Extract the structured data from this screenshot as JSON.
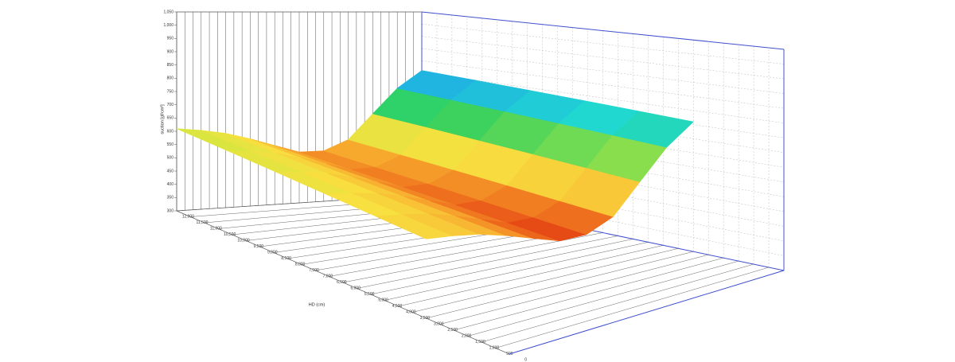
{
  "chart_data": {
    "type": "surface",
    "zlabel": "suction [gf/cm²]",
    "ylabel": "HD (cm)",
    "zlim": [
      300,
      1050
    ],
    "zticks": [
      {
        "value": 1050,
        "label": "1,050"
      },
      {
        "value": 1000,
        "label": "1,000"
      },
      950,
      900,
      850,
      800,
      750,
      700,
      650,
      600,
      550,
      500,
      450,
      400,
      350,
      300
    ],
    "ylim": [
      12000,
      0
    ],
    "yticks": [
      {
        "value": 12000,
        "label": "12,000"
      },
      {
        "value": 11500,
        "label": "11,500"
      },
      {
        "value": 11000,
        "label": "11,000"
      },
      {
        "value": 10500,
        "label": "10,500"
      },
      {
        "value": 10000,
        "label": "10,000"
      },
      {
        "value": 9500,
        "label": "9,500"
      },
      {
        "value": 9000,
        "label": "9,000"
      },
      {
        "value": 8500,
        "label": "8,500"
      },
      {
        "value": 8000,
        "label": "8,000"
      },
      {
        "value": 7500,
        "label": "7,500"
      },
      {
        "value": 7000,
        "label": "7,000"
      },
      {
        "value": 6500,
        "label": "6,500"
      },
      {
        "value": 6000,
        "label": "6,000"
      },
      {
        "value": 5500,
        "label": "5,500"
      },
      {
        "value": 5000,
        "label": "5,000"
      },
      {
        "value": 4500,
        "label": "4,500"
      },
      {
        "value": 4000,
        "label": "4,000"
      },
      {
        "value": 3500,
        "label": "3,500"
      },
      {
        "value": 3000,
        "label": "3,000"
      },
      {
        "value": 2500,
        "label": "2,500"
      },
      {
        "value": 2000,
        "label": "2,000"
      },
      {
        "value": 1500,
        "label": "1,500"
      },
      {
        "value": 1000,
        "label": "1,000"
      },
      500,
      0
    ],
    "y": [
      12000,
      10200,
      8400,
      6600,
      4800,
      3000
    ],
    "z": [
      [
        610,
        600,
        585,
        560,
        530,
        500,
        500,
        540,
        640,
        740,
        810
      ],
      [
        600,
        590,
        575,
        550,
        520,
        490,
        490,
        530,
        630,
        730,
        800
      ],
      [
        590,
        580,
        565,
        540,
        510,
        480,
        480,
        520,
        620,
        720,
        790
      ],
      [
        580,
        570,
        555,
        530,
        500,
        470,
        470,
        510,
        610,
        710,
        780
      ],
      [
        570,
        560,
        545,
        520,
        490,
        460,
        460,
        500,
        600,
        700,
        770
      ],
      [
        560,
        550,
        535,
        510,
        480,
        450,
        450,
        490,
        590,
        690,
        760
      ]
    ]
  }
}
